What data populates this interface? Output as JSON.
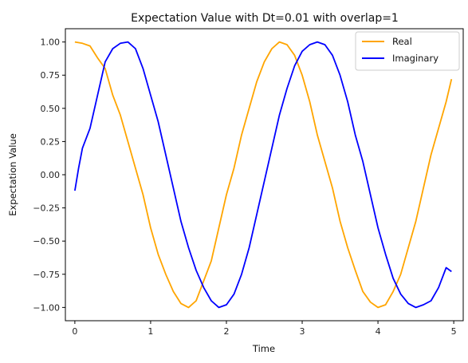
{
  "chart_data": {
    "type": "line",
    "title": "Expectation Value with Dt=0.01 with overlap=1",
    "xlabel": "Time",
    "ylabel": "Expectation Value",
    "xlim": [
      -0.125,
      5.125
    ],
    "ylim": [
      -1.1,
      1.1
    ],
    "xticks": [
      0,
      1,
      2,
      3,
      4,
      5
    ],
    "xtick_labels": [
      "0",
      "1",
      "2",
      "3",
      "4",
      "5"
    ],
    "yticks": [
      -1.0,
      -0.75,
      -0.5,
      -0.25,
      0.0,
      0.25,
      0.5,
      0.75,
      1.0
    ],
    "ytick_labels": [
      "−1.00",
      "−0.75",
      "−0.50",
      "−0.25",
      "0.00",
      "0.25",
      "0.50",
      "0.75",
      "1.00"
    ],
    "grid": false,
    "legend_position": "top-right",
    "series": [
      {
        "name": "Real",
        "color": "#ffa500",
        "x": [
          0,
          0.1,
          0.2,
          0.3,
          0.4,
          0.5,
          0.6,
          0.7,
          0.8,
          0.9,
          1.0,
          1.1,
          1.2,
          1.3,
          1.4,
          1.5,
          1.6,
          1.7,
          1.8,
          1.9,
          2.0,
          2.1,
          2.2,
          2.3,
          2.4,
          2.5,
          2.6,
          2.7,
          2.8,
          2.9,
          3.0,
          3.1,
          3.2,
          3.3,
          3.4,
          3.5,
          3.6,
          3.7,
          3.8,
          3.9,
          4.0,
          4.1,
          4.2,
          4.3,
          4.4,
          4.5,
          4.6,
          4.7,
          4.8,
          4.9,
          4.97
        ],
        "y": [
          1.0,
          0.99,
          0.97,
          0.88,
          0.8,
          0.6,
          0.45,
          0.25,
          0.05,
          -0.15,
          -0.4,
          -0.6,
          -0.75,
          -0.88,
          -0.97,
          -1.0,
          -0.95,
          -0.8,
          -0.65,
          -0.4,
          -0.15,
          0.05,
          0.3,
          0.5,
          0.7,
          0.85,
          0.95,
          1.0,
          0.98,
          0.9,
          0.75,
          0.55,
          0.3,
          0.1,
          -0.1,
          -0.35,
          -0.55,
          -0.72,
          -0.88,
          -0.96,
          -1.0,
          -0.98,
          -0.88,
          -0.75,
          -0.55,
          -0.35,
          -0.1,
          0.15,
          0.35,
          0.55,
          0.72
        ]
      },
      {
        "name": "Imaginary",
        "color": "#0000ff",
        "x": [
          0,
          0.05,
          0.1,
          0.2,
          0.3,
          0.4,
          0.5,
          0.6,
          0.7,
          0.8,
          0.9,
          1.0,
          1.1,
          1.2,
          1.3,
          1.4,
          1.5,
          1.6,
          1.7,
          1.8,
          1.9,
          2.0,
          2.1,
          2.2,
          2.3,
          2.4,
          2.5,
          2.6,
          2.7,
          2.8,
          2.9,
          3.0,
          3.1,
          3.2,
          3.3,
          3.4,
          3.5,
          3.6,
          3.7,
          3.8,
          3.9,
          4.0,
          4.1,
          4.2,
          4.3,
          4.4,
          4.5,
          4.6,
          4.7,
          4.8,
          4.9,
          4.97
        ],
        "y": [
          -0.12,
          0.05,
          0.2,
          0.35,
          0.6,
          0.85,
          0.95,
          0.99,
          1.0,
          0.95,
          0.8,
          0.6,
          0.4,
          0.15,
          -0.1,
          -0.35,
          -0.55,
          -0.72,
          -0.85,
          -0.95,
          -1.0,
          -0.98,
          -0.9,
          -0.75,
          -0.55,
          -0.3,
          -0.05,
          0.2,
          0.45,
          0.65,
          0.82,
          0.93,
          0.98,
          1.0,
          0.98,
          0.9,
          0.75,
          0.55,
          0.3,
          0.1,
          -0.15,
          -0.4,
          -0.6,
          -0.78,
          -0.9,
          -0.97,
          -1.0,
          -0.98,
          -0.95,
          -0.85,
          -0.7,
          -0.73
        ]
      }
    ]
  }
}
